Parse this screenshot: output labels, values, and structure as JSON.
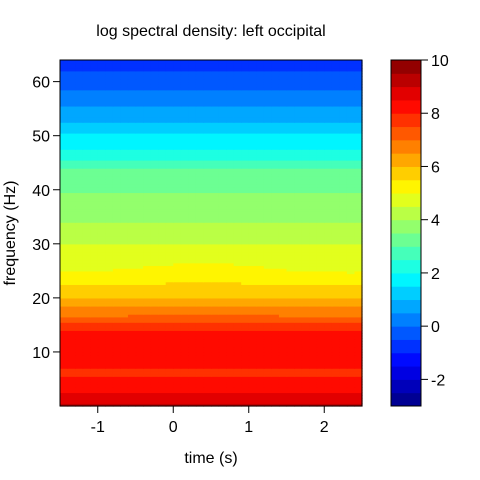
{
  "chart_data": {
    "type": "heatmap",
    "title": "log spectral density: left occipital",
    "xlabel": "time (s)",
    "ylabel": "frequency (Hz)",
    "xlim": [
      -1.5,
      2.5
    ],
    "ylim": [
      0,
      64
    ],
    "x_ticks": [
      "-1",
      "0",
      "1",
      "2"
    ],
    "y_ticks": [
      "10",
      "20",
      "30",
      "40",
      "50",
      "60"
    ],
    "colorbar": {
      "range": [
        -3,
        10
      ],
      "step": 0.5,
      "ticks": [
        "-2",
        "0",
        "2",
        "4",
        "6",
        "8",
        "10"
      ],
      "colormap": "jet"
    },
    "profile": {
      "frequency": [
        0,
        1,
        2,
        4,
        6,
        8,
        12,
        13,
        14,
        15,
        16,
        17,
        18,
        19,
        20,
        22,
        24,
        25,
        26,
        28,
        30,
        31,
        32,
        33,
        34,
        35,
        36,
        37,
        38,
        40,
        42,
        44,
        45,
        46,
        47,
        48,
        50,
        51,
        52,
        54,
        56,
        57,
        58,
        60,
        61,
        62,
        64
      ],
      "level": [
        9.1,
        8.8,
        8.6,
        8.3,
        7.9,
        8.1,
        8.3,
        8.2,
        8.0,
        7.8,
        7.3,
        6.9,
        6.6,
        6.3,
        6.0,
        5.6,
        5.3,
        5.1,
        4.9,
        4.7,
        4.5,
        4.4,
        4.25,
        4.1,
        4.0,
        3.95,
        3.9,
        3.75,
        3.6,
        3.45,
        3.3,
        3.0,
        2.7,
        2.4,
        2.1,
        1.9,
        1.6,
        1.35,
        1.1,
        0.75,
        0.45,
        0.25,
        0.1,
        -0.2,
        -0.35,
        -0.5,
        -0.7
      ]
    }
  }
}
